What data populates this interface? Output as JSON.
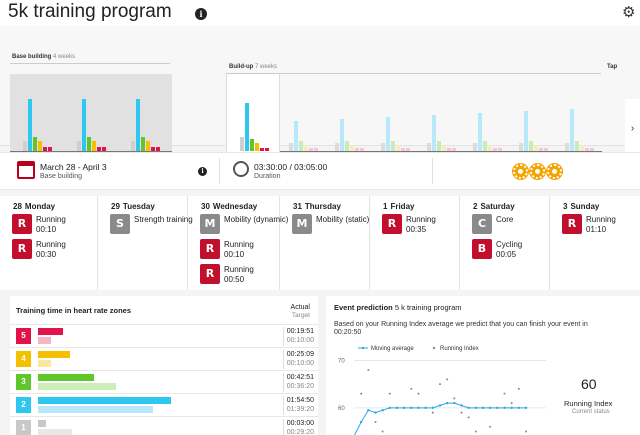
{
  "header": {
    "title": "5k training program",
    "info_icon": "i",
    "settings_icon": "gear-icon"
  },
  "timeline": {
    "phases": [
      {
        "name": "Base building",
        "weeks": "4 weeks"
      },
      {
        "name": "Build-up",
        "weeks": "7 weeks"
      },
      {
        "name": "Tap"
      }
    ],
    "week_colors": {
      "zone5": "#e0134a",
      "zone4": "#f5c000",
      "zone3": "#5fc72b",
      "zone2": "#2fc6f0",
      "zone1": "#cfcfcf",
      "fill": "#b8e8f9"
    }
  },
  "summary": {
    "dates": "March 28 - April 3",
    "phase": "Base building",
    "duration_value": "03:30:00 / 03:05:00",
    "duration_label": "Duration",
    "info_icon": "i"
  },
  "days": [
    {
      "num": "28",
      "name": "Monday",
      "activities": [
        {
          "name": "Running",
          "duration": "00:10",
          "icon": "running-icon",
          "color": "red"
        },
        {
          "name": "Running",
          "duration": "00:30",
          "icon": "running-icon",
          "color": "red"
        }
      ]
    },
    {
      "num": "29",
      "name": "Tuesday",
      "activities": [
        {
          "name": "Strength training",
          "duration": "",
          "icon": "strength-icon",
          "color": "grey"
        }
      ]
    },
    {
      "num": "30",
      "name": "Wednesday",
      "activities": [
        {
          "name": "Mobility (dynamic)",
          "duration": "",
          "icon": "mobility-icon",
          "color": "grey"
        },
        {
          "name": "Running",
          "duration": "00:10",
          "icon": "running-icon",
          "color": "red"
        },
        {
          "name": "Running",
          "duration": "00:50",
          "icon": "running-icon",
          "color": "red"
        }
      ]
    },
    {
      "num": "31",
      "name": "Thursday",
      "activities": [
        {
          "name": "Mobility (static)",
          "duration": "",
          "icon": "mobility-icon",
          "color": "grey"
        }
      ]
    },
    {
      "num": "1",
      "name": "Friday",
      "activities": [
        {
          "name": "Running",
          "duration": "00:35",
          "icon": "running-icon",
          "color": "red"
        }
      ]
    },
    {
      "num": "2",
      "name": "Saturday",
      "activities": [
        {
          "name": "Core",
          "duration": "",
          "icon": "core-icon",
          "color": "grey"
        },
        {
          "name": "Cycling",
          "duration": "00:05",
          "icon": "cycling-icon",
          "color": "red"
        }
      ]
    },
    {
      "num": "3",
      "name": "Sunday",
      "activities": [
        {
          "name": "Running",
          "duration": "01:10",
          "icon": "running-icon",
          "color": "red"
        }
      ]
    }
  ],
  "zones": {
    "title": "Training time in heart rate zones",
    "actual_label": "Actual",
    "target_label": "Target",
    "rows": [
      {
        "zone": "5",
        "color": "#e0134a",
        "light": "#f3b5c7",
        "actual": "00:19:51",
        "target": "00:10:00",
        "actual_frac": 0.18,
        "target_frac": 0.09
      },
      {
        "zone": "4",
        "color": "#f5c000",
        "light": "#fbe6a0",
        "actual": "00:25:09",
        "target": "00:10:00",
        "actual_frac": 0.23,
        "target_frac": 0.09
      },
      {
        "zone": "3",
        "color": "#5fc72b",
        "light": "#cdeeb8",
        "actual": "00:42:51",
        "target": "00:36:20",
        "actual_frac": 0.4,
        "target_frac": 0.56
      },
      {
        "zone": "2",
        "color": "#2fc6f0",
        "light": "#b8e8f9",
        "actual": "01:54:50",
        "target": "01:39:20",
        "actual_frac": 0.95,
        "target_frac": 0.82
      },
      {
        "zone": "1",
        "color": "#c8c8c8",
        "light": "#e8e8e8",
        "actual": "00:03:00",
        "target": "00:29:20",
        "actual_frac": 0.06,
        "target_frac": 0.24
      }
    ]
  },
  "event": {
    "title": "Event prediction",
    "subtitle": "5 k training program",
    "text": "Based on your Running Index average we predict that you can finish your event in",
    "prediction": "00:20:50",
    "ri_value": "60",
    "ri_label": "Running Index",
    "ri_sub": "Current status"
  },
  "chart_data": {
    "type": "scatter",
    "title": "",
    "legend": [
      "Moving average",
      "Running Index"
    ],
    "legend_position": "top-left",
    "yticks": [
      "70",
      "60"
    ],
    "ylim": [
      53,
      72
    ],
    "series": [
      {
        "name": "Moving average",
        "color": "#2fa8e6",
        "x": [
          0,
          1,
          2,
          3,
          4,
          5,
          6,
          7,
          8,
          9,
          10,
          11,
          12,
          13,
          14,
          15,
          16,
          17,
          18,
          19,
          20,
          21,
          22,
          23,
          24
        ],
        "values": [
          54,
          57,
          59.5,
          59,
          59.5,
          60,
          60,
          60,
          60,
          60,
          60,
          60,
          60.5,
          61,
          61,
          60.5,
          60,
          60,
          60,
          60,
          60,
          60,
          60,
          60,
          60
        ]
      },
      {
        "name": "Running Index",
        "color": "#888888",
        "x": [
          0,
          1,
          2,
          3,
          4,
          5,
          6,
          7,
          8,
          9,
          10,
          11,
          12,
          13,
          14,
          15,
          16,
          17,
          18,
          19,
          20,
          21,
          22,
          23,
          24
        ],
        "values": [
          54,
          63,
          68,
          57,
          55,
          63,
          60,
          60,
          64,
          63,
          60,
          59,
          65,
          66,
          62,
          59,
          58,
          55,
          60,
          56,
          60,
          63,
          61,
          64,
          55
        ]
      }
    ]
  }
}
